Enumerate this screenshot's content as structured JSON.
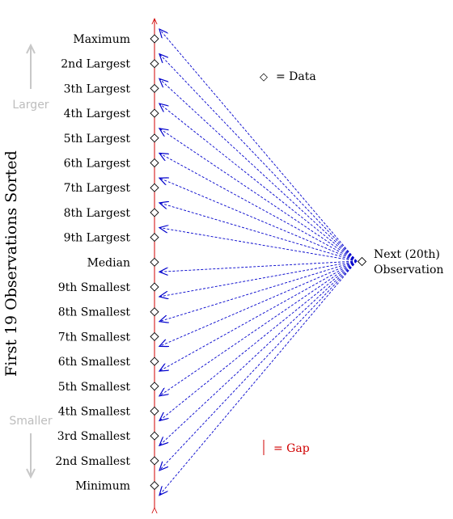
{
  "axis_title": "First 19 Observations Sorted",
  "direction": {
    "up_label": "Larger",
    "down_label": "Smaller",
    "color": "#c8c8c8"
  },
  "observations": [
    "Maximum",
    "2nd Largest",
    "3th Largest",
    "4th Largest",
    "5th Largest",
    "6th Largest",
    "7th Largest",
    "8th Largest",
    "9th Largest",
    "Median",
    "9th Smallest",
    "8th Smallest",
    "7th Smallest",
    "6th Smallest",
    "5th Smallest",
    "4th Smallest",
    "3rd Smallest",
    "2nd Smallest",
    "Minimum"
  ],
  "next_observation": {
    "line1": "Next (20th)",
    "line2": "Observation"
  },
  "legend": {
    "data_symbol": "◇",
    "data_text": "= Data",
    "gap_text": "= Gap"
  },
  "colors": {
    "axis": "#d00000",
    "arrows": "#0000cc",
    "text": "#000000",
    "gap_text": "#d00000"
  },
  "icons": {
    "data_marker": "diamond-icon",
    "arrow_head": "arrowhead-icon"
  }
}
